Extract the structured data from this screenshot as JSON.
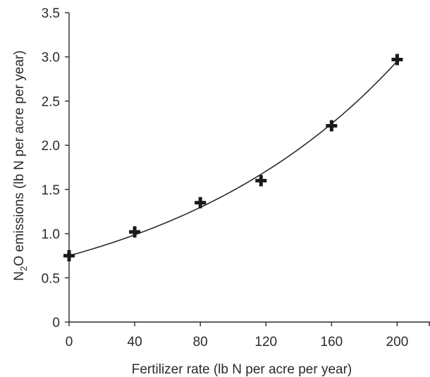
{
  "chart_data": {
    "type": "scatter",
    "title": "",
    "xlabel": "Fertilizer rate (lb N per acre per year)",
    "ylabel_main": "N",
    "ylabel_sub": "2",
    "ylabel_rest": "O emissions (lb N per acre per year)",
    "xlim": [
      0,
      220
    ],
    "ylim": [
      0,
      3.5
    ],
    "x_ticks": [
      0,
      40,
      80,
      120,
      160,
      200
    ],
    "x_tick_labels": [
      "0",
      "40",
      "80",
      "120",
      "160",
      "200"
    ],
    "y_ticks": [
      0,
      0.5,
      1.0,
      1.5,
      2.0,
      2.5,
      3.0,
      3.5
    ],
    "y_tick_labels": [
      "0",
      "0.5",
      "1.0",
      "1.5",
      "2.0",
      "2.5",
      "3.0",
      "3.5"
    ],
    "grid": false,
    "series": [
      {
        "marker": "plus",
        "x": [
          0,
          40,
          80,
          117,
          160,
          200
        ],
        "y": [
          0.75,
          1.02,
          1.35,
          1.6,
          2.22,
          2.97
        ]
      }
    ],
    "fit": {
      "type": "exponential",
      "a": 0.75,
      "b": 0.00685
    },
    "colors": {
      "marker": "#1a1a1a",
      "line": "#2b2b2b",
      "axis": "#2b2b2b"
    }
  }
}
